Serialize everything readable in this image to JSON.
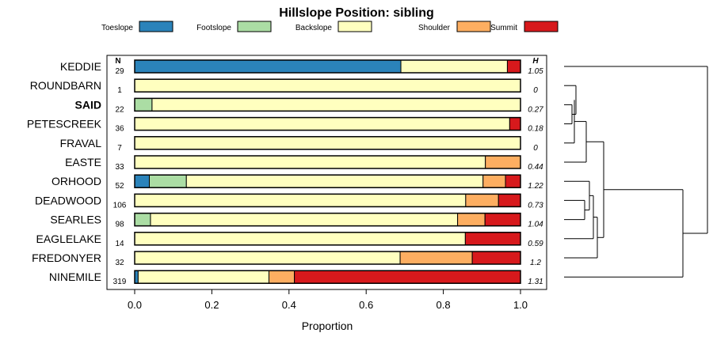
{
  "chart_data": {
    "type": "bar",
    "stacked": true,
    "orientation": "horizontal",
    "title": "Hillslope Position: sibling",
    "xlabel": "Proportion",
    "ylabel": "",
    "xlim": [
      0,
      1
    ],
    "xticks": [
      "0.0",
      "0.2",
      "0.4",
      "0.6",
      "0.8",
      "1.0"
    ],
    "n_header": "N",
    "h_header": "H",
    "legend_placement": "top",
    "legend": [
      {
        "name": "Toeslope",
        "color": "#2b83ba"
      },
      {
        "name": "Footslope",
        "color": "#abdda4"
      },
      {
        "name": "Backslope",
        "color": "#ffffbf"
      },
      {
        "name": "Shoulder",
        "color": "#fdae61"
      },
      {
        "name": "Summit",
        "color": "#d7191c"
      }
    ],
    "rows": [
      {
        "label": "KEDDIE",
        "bold": false,
        "n": "29",
        "h": "1.05",
        "values": [
          0.69,
          0,
          0.276,
          0,
          0.034
        ]
      },
      {
        "label": "ROUNDBARN",
        "bold": false,
        "n": "1",
        "h": "0",
        "values": [
          0,
          0,
          1.0,
          0,
          0
        ]
      },
      {
        "label": "SAID",
        "bold": true,
        "n": "22",
        "h": "0.27",
        "values": [
          0,
          0.045,
          0.955,
          0,
          0
        ]
      },
      {
        "label": "PETESCREEK",
        "bold": false,
        "n": "36",
        "h": "0.18",
        "values": [
          0,
          0,
          0.972,
          0,
          0.028
        ]
      },
      {
        "label": "FRAVAL",
        "bold": false,
        "n": "7",
        "h": "0",
        "values": [
          0,
          0,
          1.0,
          0,
          0
        ]
      },
      {
        "label": "EASTE",
        "bold": false,
        "n": "33",
        "h": "0.44",
        "values": [
          0,
          0,
          0.909,
          0.091,
          0
        ]
      },
      {
        "label": "ORHOOD",
        "bold": false,
        "n": "52",
        "h": "1.22",
        "values": [
          0.038,
          0.096,
          0.769,
          0.058,
          0.039
        ]
      },
      {
        "label": "DEADWOOD",
        "bold": false,
        "n": "106",
        "h": "0.73",
        "values": [
          0,
          0,
          0.858,
          0.085,
          0.057
        ]
      },
      {
        "label": "SEARLES",
        "bold": false,
        "n": "98",
        "h": "1.04",
        "values": [
          0,
          0.041,
          0.796,
          0.071,
          0.092
        ]
      },
      {
        "label": "EAGLELAKE",
        "bold": false,
        "n": "14",
        "h": "0.59",
        "values": [
          0,
          0,
          0.857,
          0,
          0.143
        ]
      },
      {
        "label": "FREDONYER",
        "bold": false,
        "n": "32",
        "h": "1.2",
        "values": [
          0,
          0,
          0.688,
          0.187,
          0.125
        ]
      },
      {
        "label": "NINEMILE",
        "bold": false,
        "n": "319",
        "h": "1.31",
        "values": [
          0.009,
          0,
          0.339,
          0.066,
          0.586
        ]
      }
    ]
  }
}
